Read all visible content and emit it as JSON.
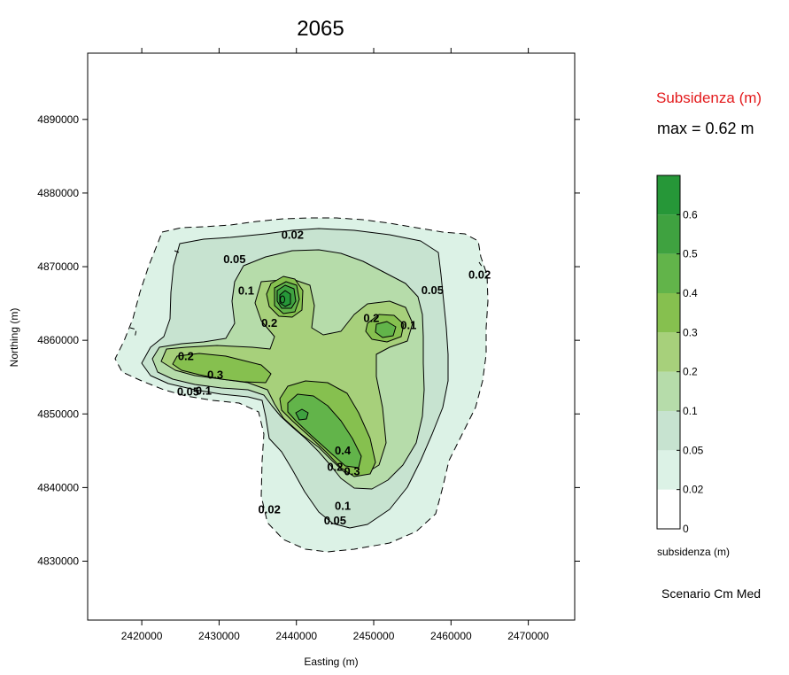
{
  "chart_data": {
    "type": "contour",
    "title": "2065",
    "xlabel": "Easting (m)",
    "ylabel": "Northing (m)",
    "xlim": [
      2413000,
      2476000
    ],
    "ylim": [
      4822000,
      4899000
    ],
    "x_ticks": [
      2420000,
      2430000,
      2440000,
      2450000,
      2460000,
      2470000
    ],
    "x_tick_labels": [
      "2420000",
      "2430000",
      "2440000",
      "2450000",
      "2460000",
      "2470000"
    ],
    "y_ticks": [
      4830000,
      4840000,
      4850000,
      4860000,
      4870000,
      4880000,
      4890000
    ],
    "y_tick_labels": [
      "4830000",
      "4840000",
      "4850000",
      "4860000",
      "4870000",
      "4880000",
      "4890000"
    ],
    "levels": [
      0,
      0.02,
      0.05,
      0.1,
      0.2,
      0.3,
      0.4,
      0.5,
      0.6,
      0.7
    ],
    "level_colors": [
      "#ffffff",
      "#dcf2e6",
      "#c7e3d0",
      "#b6dcaa",
      "#a7d07b",
      "#86c04f",
      "#62b44a",
      "#3fa240",
      "#269738"
    ],
    "contour_labels": [
      {
        "text": "0.02",
        "x": 2439500,
        "y": 4873800
      },
      {
        "text": "0.05",
        "x": 2432000,
        "y": 4870500
      },
      {
        "text": "0.1",
        "x": 2433500,
        "y": 4866200
      },
      {
        "text": "0.2",
        "x": 2436500,
        "y": 4861800
      },
      {
        "text": "0.2",
        "x": 2449700,
        "y": 4862500
      },
      {
        "text": "0.1",
        "x": 2454500,
        "y": 4861500
      },
      {
        "text": "0.05",
        "x": 2457600,
        "y": 4866300
      },
      {
        "text": "0.02",
        "x": 2463700,
        "y": 4868400
      },
      {
        "text": "0.2",
        "x": 2425700,
        "y": 4857300
      },
      {
        "text": "0.3",
        "x": 2429500,
        "y": 4854800
      },
      {
        "text": "0.05",
        "x": 2426000,
        "y": 4852500
      },
      {
        "text": "0.1",
        "x": 2428000,
        "y": 4852600
      },
      {
        "text": "0.4",
        "x": 2446000,
        "y": 4844500
      },
      {
        "text": "0.3",
        "x": 2447200,
        "y": 4841700
      },
      {
        "text": "0.2",
        "x": 2445000,
        "y": 4842300
      },
      {
        "text": "0.1",
        "x": 2446000,
        "y": 4837000
      },
      {
        "text": "0.05",
        "x": 2445000,
        "y": 4835000
      },
      {
        "text": "0.02",
        "x": 2436500,
        "y": 4836500
      }
    ],
    "legend": {
      "title": "Subsidenza (m)",
      "max_text": "max = 0.62 m",
      "tick_labels": [
        "0",
        "0.02",
        "0.05",
        "0.1",
        "0.2",
        "0.3",
        "0.4",
        "0.5",
        "0.6"
      ],
      "caption": "subsidenza (m)",
      "scenario": "Scenario Cm Med",
      "title_color": "#e31a1c",
      "placement": "right"
    }
  }
}
